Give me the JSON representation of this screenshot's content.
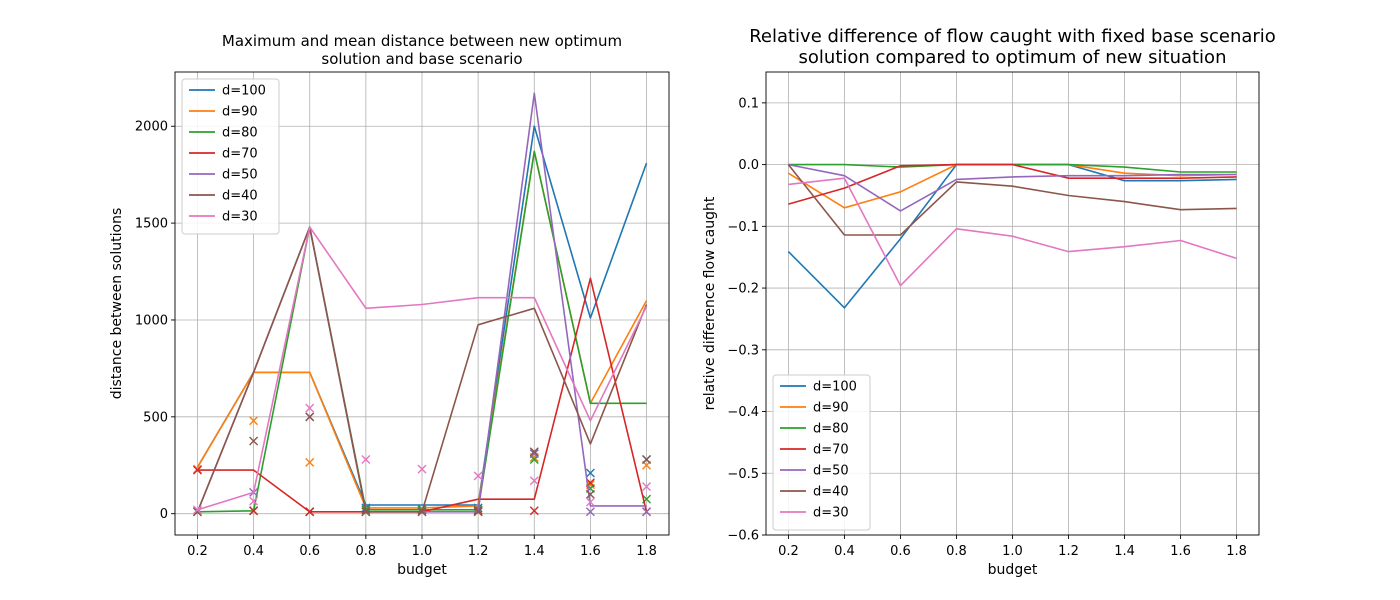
{
  "chart_data": [
    {
      "type": "line",
      "title_lines": [
        "Maximum and mean distance between new optimum",
        "solution and base scenario"
      ],
      "xlabel": "budget",
      "ylabel": "distance between solutions",
      "xlim": [
        0.12,
        1.88
      ],
      "ylim": [
        -110,
        2280
      ],
      "xticks": [
        0.2,
        0.4,
        0.6,
        0.8,
        1.0,
        1.2,
        1.4,
        1.6,
        1.8
      ],
      "xtick_labels": [
        "0.2",
        "0.4",
        "0.6",
        "0.8",
        "1.0",
        "1.2",
        "1.4",
        "1.6",
        "1.8"
      ],
      "yticks": [
        0,
        500,
        1000,
        1500,
        2000
      ],
      "ytick_labels": [
        "0",
        "500",
        "1000",
        "1500",
        "2000"
      ],
      "grid": true,
      "legend_position": "top-left",
      "x": [
        0.2,
        0.4,
        0.6,
        0.8,
        1.0,
        1.2,
        1.4,
        1.6,
        1.8
      ],
      "series": [
        {
          "name": "d=100",
          "color": "#1f77b4",
          "max": [
            240,
            730,
            730,
            45,
            45,
            45,
            2000,
            1010,
            1810
          ],
          "mean": [
            10,
            15,
            10,
            30,
            25,
            30,
            310,
            210,
            280
          ]
        },
        {
          "name": "d=90",
          "color": "#ff7f0e",
          "max": [
            240,
            730,
            730,
            30,
            30,
            40,
            1870,
            570,
            1100
          ],
          "mean": [
            230,
            480,
            265,
            20,
            20,
            20,
            290,
            150,
            250
          ]
        },
        {
          "name": "d=80",
          "color": "#2ca02c",
          "max": [
            10,
            15,
            1480,
            20,
            20,
            20,
            1870,
            570,
            570
          ],
          "mean": [
            10,
            15,
            10,
            20,
            20,
            20,
            280,
            130,
            75
          ]
        },
        {
          "name": "d=70",
          "color": "#d62728",
          "max": [
            225,
            225,
            10,
            10,
            10,
            75,
            75,
            1215,
            10
          ],
          "mean": [
            225,
            15,
            10,
            10,
            10,
            15,
            15,
            160,
            10
          ]
        },
        {
          "name": "d=50",
          "color": "#9467bd",
          "max": [
            10,
            730,
            1480,
            10,
            10,
            10,
            2170,
            40,
            40
          ],
          "mean": [
            10,
            110,
            500,
            10,
            10,
            10,
            310,
            10,
            10
          ]
        },
        {
          "name": "d=40",
          "color": "#8c564b",
          "max": [
            10,
            730,
            1480,
            10,
            10,
            975,
            1060,
            360,
            1080
          ],
          "mean": [
            10,
            375,
            500,
            10,
            10,
            10,
            320,
            100,
            280
          ]
        },
        {
          "name": "d=30",
          "color": "#e377c2",
          "max": [
            20,
            110,
            1480,
            1060,
            1080,
            1115,
            1115,
            480,
            1070
          ],
          "mean": [
            20,
            65,
            545,
            280,
            230,
            195,
            170,
            60,
            140
          ]
        }
      ]
    },
    {
      "type": "line",
      "title_lines": [
        "Relative difference of flow caught with fixed base scenario",
        "solution compared to optimum of new situation"
      ],
      "xlabel": "budget",
      "ylabel": "relative difference flow caught",
      "xlim": [
        0.12,
        1.88
      ],
      "ylim": [
        -0.6,
        0.15
      ],
      "xticks": [
        0.2,
        0.4,
        0.6,
        0.8,
        1.0,
        1.2,
        1.4,
        1.6,
        1.8
      ],
      "xtick_labels": [
        "0.2",
        "0.4",
        "0.6",
        "0.8",
        "1.0",
        "1.2",
        "1.4",
        "1.6",
        "1.8"
      ],
      "yticks": [
        -0.6,
        -0.5,
        -0.4,
        -0.3,
        -0.2,
        -0.1,
        0.0,
        0.1
      ],
      "ytick_labels": [
        "−0.6",
        "−0.5",
        "−0.4",
        "−0.3",
        "−0.2",
        "−0.1",
        "0.0",
        "0.1"
      ],
      "grid": true,
      "legend_position": "bottom-left",
      "x": [
        0.2,
        0.4,
        0.6,
        0.8,
        1.0,
        1.2,
        1.4,
        1.6,
        1.8
      ],
      "series": [
        {
          "name": "d=100",
          "color": "#1f77b4",
          "values": [
            -0.141,
            -0.232,
            -0.12,
            0.0,
            0.0,
            0.0,
            -0.026,
            -0.026,
            -0.024
          ]
        },
        {
          "name": "d=90",
          "color": "#ff7f0e",
          "values": [
            -0.014,
            -0.07,
            -0.044,
            0.0,
            0.0,
            0.0,
            -0.014,
            -0.018,
            -0.016
          ]
        },
        {
          "name": "d=80",
          "color": "#2ca02c",
          "values": [
            0.0,
            0.0,
            -0.004,
            0.0,
            0.0,
            0.0,
            -0.004,
            -0.012,
            -0.012
          ]
        },
        {
          "name": "d=70",
          "color": "#d62728",
          "values": [
            -0.064,
            -0.038,
            -0.002,
            0.0,
            0.0,
            -0.022,
            -0.022,
            -0.022,
            -0.02
          ]
        },
        {
          "name": "d=50",
          "color": "#9467bd",
          "values": [
            0.0,
            -0.018,
            -0.075,
            -0.024,
            -0.02,
            -0.018,
            -0.018,
            -0.016,
            -0.016
          ]
        },
        {
          "name": "d=40",
          "color": "#8c564b",
          "values": [
            0.0,
            -0.114,
            -0.114,
            -0.028,
            -0.035,
            -0.05,
            -0.06,
            -0.073,
            -0.071
          ]
        },
        {
          "name": "d=30",
          "color": "#e377c2",
          "values": [
            -0.032,
            -0.022,
            -0.196,
            -0.104,
            -0.116,
            -0.141,
            -0.133,
            -0.123,
            -0.152
          ]
        }
      ]
    }
  ]
}
